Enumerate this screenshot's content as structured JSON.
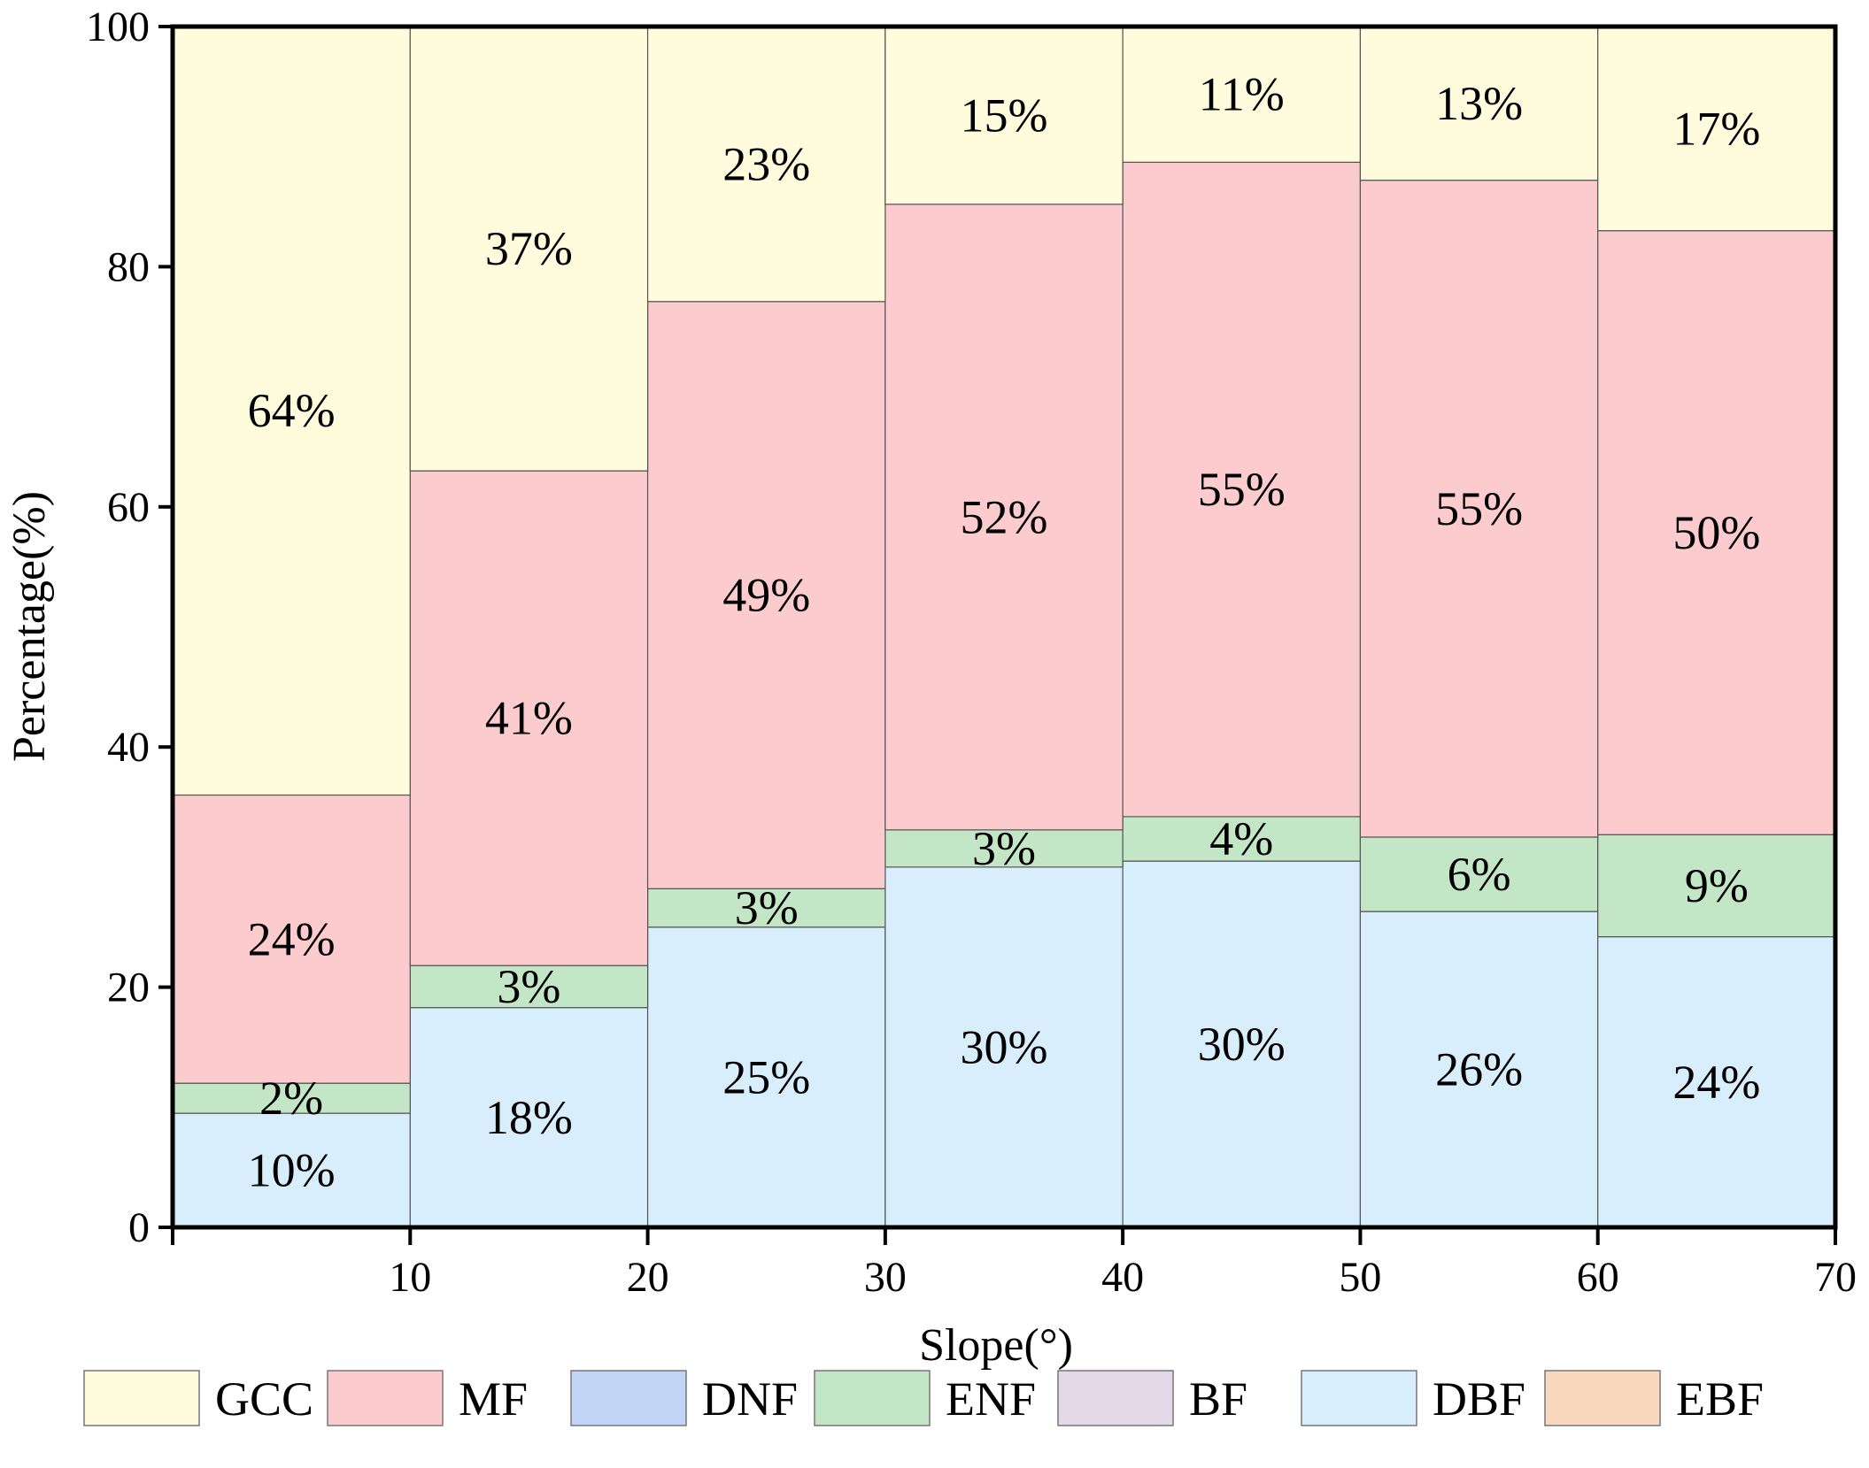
{
  "chart_data": {
    "type": "bar",
    "stacked": true,
    "title": "",
    "xlabel": "Slope(°)",
    "ylabel": "Percentage(%)",
    "xlim": [
      0,
      70
    ],
    "ylim": [
      0,
      100
    ],
    "bin_edges": [
      0,
      10,
      20,
      30,
      40,
      50,
      60,
      70
    ],
    "x_ticks": [
      "10",
      "20",
      "30",
      "40",
      "50",
      "60",
      "70"
    ],
    "y_ticks": [
      "0",
      "20",
      "40",
      "60",
      "80",
      "100"
    ],
    "grid": false,
    "legend_position": "bottom",
    "legend": [
      "GCC",
      "MF",
      "DNF",
      "ENF",
      "BF",
      "DBF",
      "EBF"
    ],
    "series": [
      {
        "name": "DBF",
        "color": "#d9eefc",
        "values": [
          9.5,
          18.3,
          25.0,
          30.0,
          30.5,
          26.3,
          24.2
        ],
        "labels": [
          "10%",
          "18%",
          "25%",
          "30%",
          "30%",
          "26%",
          "24%"
        ]
      },
      {
        "name": "ENF",
        "color": "#c3e6c6",
        "values": [
          2.5,
          3.5,
          3.2,
          3.1,
          3.7,
          6.2,
          8.5
        ],
        "labels": [
          "2%",
          "3%",
          "3%",
          "3%",
          "4%",
          "6%",
          "9%"
        ]
      },
      {
        "name": "MF",
        "color": "#fbcbcd",
        "values": [
          24.0,
          41.2,
          48.9,
          52.1,
          54.5,
          54.7,
          50.3
        ],
        "labels": [
          "24%",
          "41%",
          "49%",
          "52%",
          "55%",
          "55%",
          "50%"
        ]
      },
      {
        "name": "GCC",
        "color": "#fefcdc",
        "values": [
          64.0,
          37.0,
          22.9,
          14.8,
          11.3,
          12.8,
          17.0
        ],
        "labels": [
          "64%",
          "37%",
          "23%",
          "15%",
          "11%",
          "13%",
          "17%"
        ]
      },
      {
        "name": "DNF",
        "color": "#c2d5f6",
        "values": [
          0,
          0,
          0,
          0,
          0,
          0,
          0
        ],
        "labels": []
      },
      {
        "name": "BF",
        "color": "#e4d9e9",
        "values": [
          0,
          0,
          0,
          0,
          0,
          0,
          0
        ],
        "labels": []
      },
      {
        "name": "EBF",
        "color": "#fad8bd",
        "values": [
          0,
          0,
          0,
          0,
          0,
          0,
          0
        ],
        "labels": []
      }
    ]
  }
}
